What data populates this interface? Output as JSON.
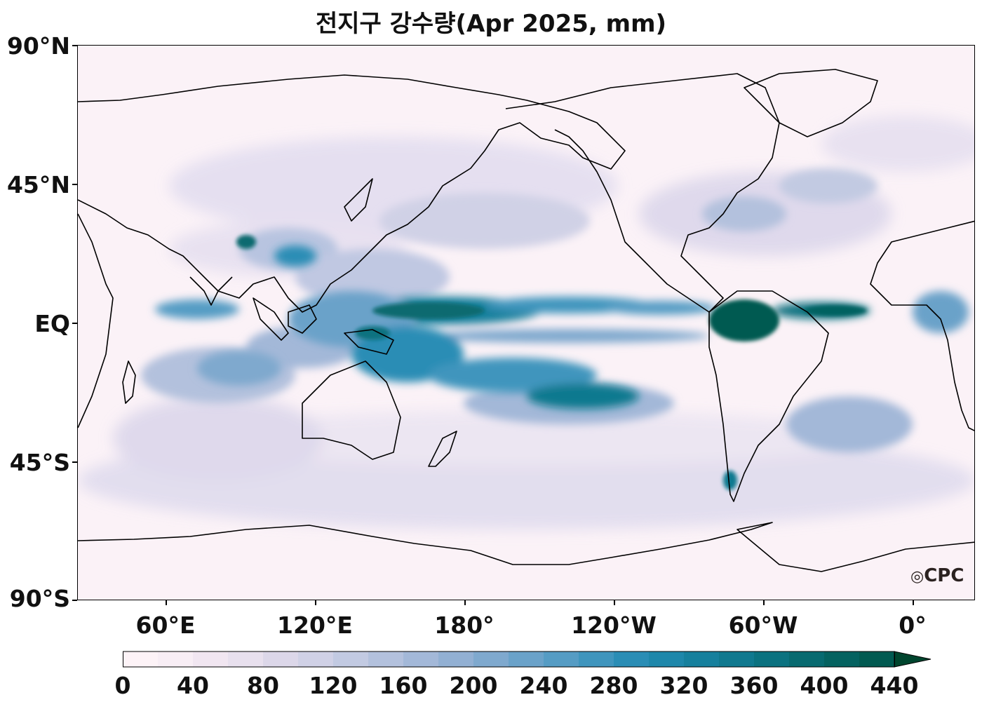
{
  "title": "전지구 강수량(Apr 2025, mm)",
  "logo_text": "CPC",
  "y_axis": {
    "ticks": [
      "90°N",
      "45°N",
      "EQ",
      "45°S",
      "90°S"
    ]
  },
  "x_axis": {
    "ticks": [
      "60°E",
      "120°E",
      "180°",
      "120°W",
      "60°W",
      "0°"
    ]
  },
  "colorbar": {
    "ticks": [
      "0",
      "40",
      "80",
      "120",
      "160",
      "200",
      "240",
      "280",
      "320",
      "360",
      "400",
      "440"
    ],
    "levels": [
      0,
      20,
      40,
      60,
      80,
      100,
      120,
      140,
      160,
      180,
      200,
      220,
      240,
      260,
      280,
      300,
      320,
      340,
      360,
      380,
      400,
      420,
      440
    ],
    "colors": [
      "#fdf3f7",
      "#f8eef5",
      "#f1e6f1",
      "#e8e0ee",
      "#dcd7e9",
      "#d0d1e6",
      "#c2cae2",
      "#b3c1dd",
      "#a3b8d8",
      "#92b0d3",
      "#7fa9ce",
      "#6aa2c9",
      "#559cc4",
      "#3f95bd",
      "#2a8db5",
      "#1e87aa",
      "#16809d",
      "#10798f",
      "#0b7280",
      "#076a70",
      "#046260",
      "#015a51"
    ],
    "extend": "max"
  },
  "map": {
    "projection": "equirectangular",
    "central_longitude": "150°E",
    "lat_range": [
      -90,
      90
    ],
    "cmap": "PuBuGn",
    "coastlines": true
  }
}
